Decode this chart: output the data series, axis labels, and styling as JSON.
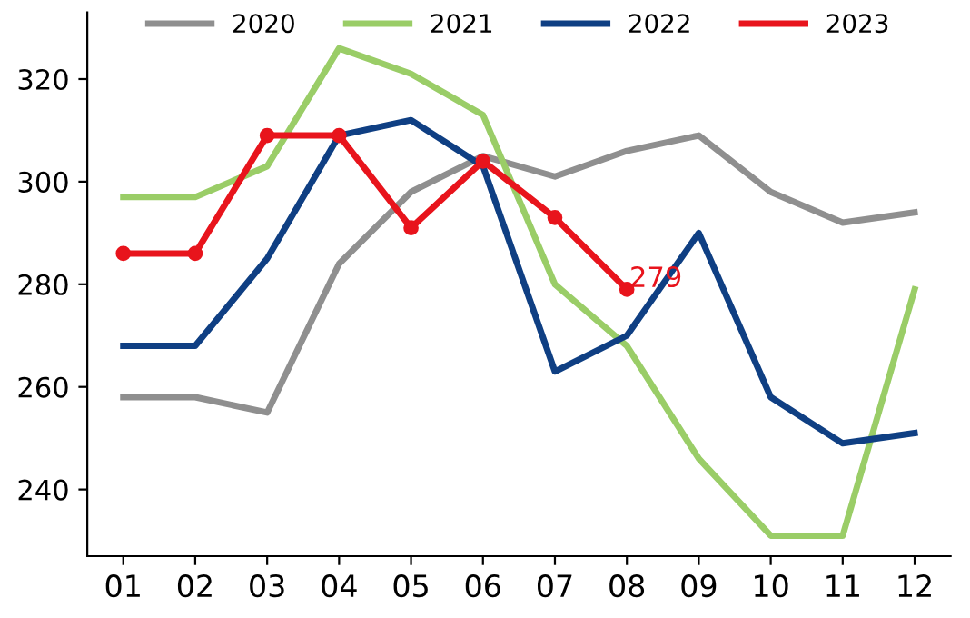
{
  "chart_data": {
    "type": "line",
    "categories": [
      "01",
      "02",
      "03",
      "04",
      "05",
      "06",
      "07",
      "08",
      "09",
      "10",
      "11",
      "12"
    ],
    "series": [
      {
        "name": "2020",
        "color": "#8f8f8f",
        "marker": "none",
        "values": [
          258,
          258,
          255,
          284,
          298,
          305,
          301,
          306,
          309,
          298,
          292,
          294
        ]
      },
      {
        "name": "2021",
        "color": "#9acd67",
        "marker": "none",
        "values": [
          297,
          297,
          303,
          326,
          321,
          313,
          280,
          268,
          246,
          231,
          231,
          279
        ]
      },
      {
        "name": "2022",
        "color": "#0f3f83",
        "marker": "none",
        "values": [
          268,
          268,
          285,
          309,
          312,
          303,
          263,
          270,
          290,
          258,
          249,
          251
        ]
      },
      {
        "name": "2023",
        "color": "#e8141c",
        "marker": "circle",
        "values": [
          286,
          286,
          309,
          309,
          291,
          304,
          293,
          279,
          null,
          null,
          null,
          null
        ]
      }
    ],
    "annotations": [
      {
        "text": "279",
        "x": "08",
        "y": 279
      }
    ],
    "ylim": [
      227,
      333
    ],
    "yticks": [
      240,
      260,
      280,
      300,
      320
    ],
    "grid": false,
    "legend": "top"
  }
}
